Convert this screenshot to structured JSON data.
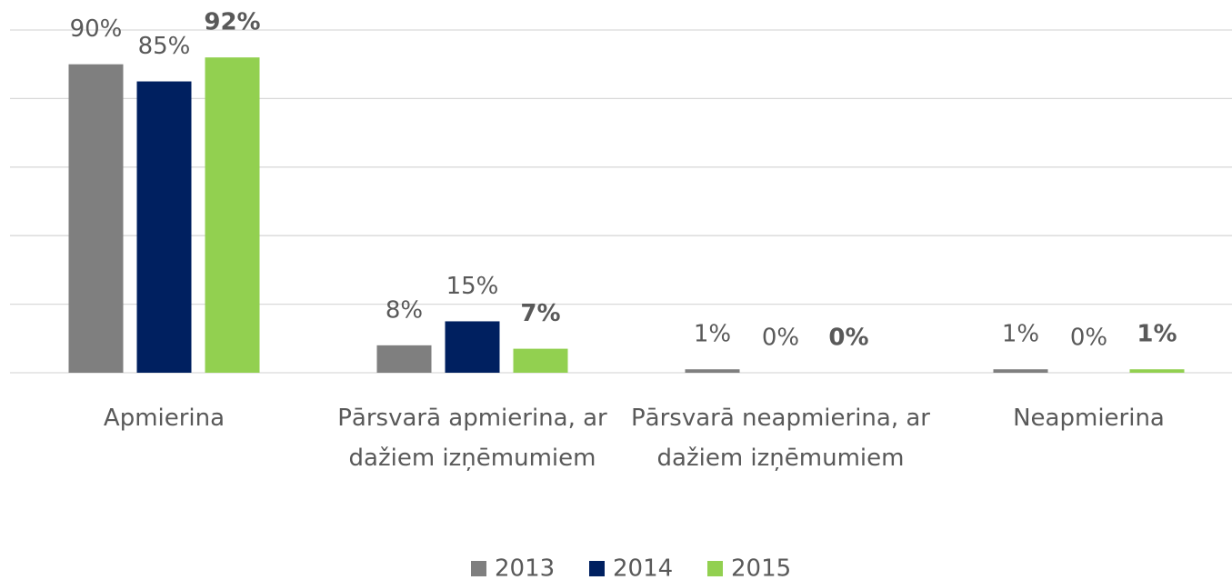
{
  "chart_data": {
    "type": "bar",
    "categories": [
      "Apmierina",
      "Pārsvarā apmierina, ar dažiem izņēmumiem",
      "Pārsvarā neapmierina, ar dažiem izņēmumiem",
      "Neapmierina"
    ],
    "series": [
      {
        "name": "2013",
        "color": "#7f7f7f",
        "values": [
          90,
          8,
          1,
          1
        ],
        "value_labels": [
          "90%",
          "8%",
          "1%",
          "1%"
        ],
        "label_weight": "normal"
      },
      {
        "name": "2014",
        "color": "#002060",
        "values": [
          85,
          15,
          0,
          0
        ],
        "value_labels": [
          "85%",
          "15%",
          "0%",
          "0%"
        ],
        "label_weight": "normal"
      },
      {
        "name": "2015",
        "color": "#92d050",
        "values": [
          92,
          7,
          0,
          1
        ],
        "value_labels": [
          "92%",
          "7%",
          "0%",
          "1%"
        ],
        "label_weight": "bold"
      }
    ],
    "ylim": [
      0,
      100
    ],
    "yticks": [
      0,
      20,
      40,
      60,
      80,
      100
    ],
    "grid": true,
    "legend": "bottom"
  }
}
